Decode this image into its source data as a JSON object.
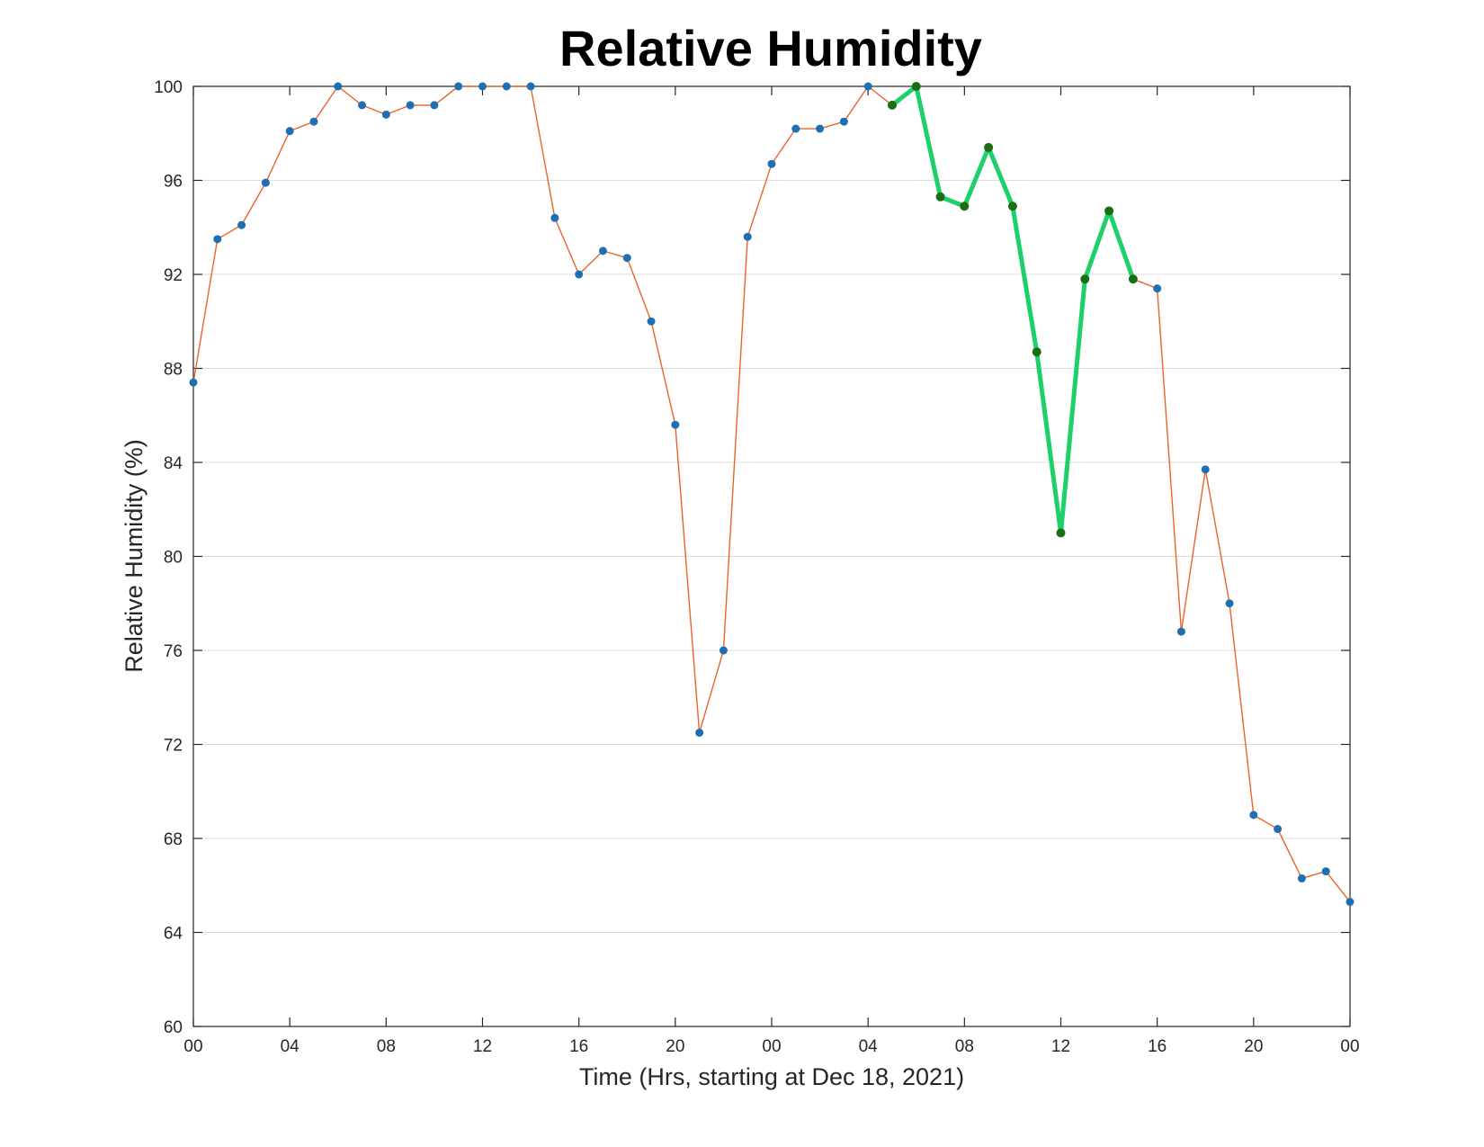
{
  "chart_data": {
    "type": "line",
    "title": "Relative Humidity",
    "xlabel": "Time (Hrs, starting at Dec 18, 2021)",
    "ylabel": "Relative Humidity (%)",
    "ylim": [
      60,
      100
    ],
    "xlim": [
      0,
      48
    ],
    "grid": "horizontal",
    "x_tick_values": [
      0,
      4,
      8,
      12,
      16,
      20,
      24,
      28,
      32,
      36,
      40,
      44,
      48
    ],
    "x_tick_labels": [
      "00",
      "04",
      "08",
      "12",
      "16",
      "20",
      "00",
      "04",
      "08",
      "12",
      "16",
      "20",
      "00"
    ],
    "y_tick_values": [
      60,
      64,
      68,
      72,
      76,
      80,
      84,
      88,
      92,
      96,
      100
    ],
    "y_tick_labels": [
      "60",
      "64",
      "68",
      "72",
      "76",
      "80",
      "84",
      "88",
      "92",
      "96",
      "100"
    ],
    "x": [
      0,
      1,
      2,
      3,
      4,
      5,
      6,
      7,
      8,
      9,
      10,
      11,
      12,
      13,
      14,
      15,
      16,
      17,
      18,
      19,
      20,
      21,
      22,
      23,
      24,
      25,
      26,
      27,
      28,
      29,
      30,
      31,
      32,
      33,
      34,
      35,
      36,
      37,
      38,
      39,
      40,
      41,
      42,
      43,
      44,
      45,
      46,
      47,
      48
    ],
    "series": [
      {
        "color": "#e8642a",
        "marker_color": "#1f6fb4",
        "values": [
          87.4,
          93.5,
          94.1,
          95.9,
          98.1,
          98.5,
          100,
          99.2,
          98.8,
          99.2,
          99.2,
          100,
          100,
          100,
          100,
          94.4,
          92.0,
          93.0,
          92.7,
          90.0,
          85.6,
          72.5,
          76.0,
          93.6,
          96.7,
          98.2,
          98.2,
          98.5,
          100,
          99.2,
          100,
          95.3,
          94.9,
          97.4,
          94.9,
          88.7,
          81.0,
          91.8,
          94.7,
          91.8,
          91.4,
          76.8,
          83.7,
          78.0,
          69.0,
          68.4,
          66.3,
          66.6,
          65.3
        ]
      },
      {
        "color": "#1ed06a",
        "marker_color": "#1a6e14",
        "x": [
          29,
          30,
          31,
          32,
          33,
          34,
          35,
          36,
          37,
          38,
          39
        ],
        "values": [
          99.2,
          100,
          95.3,
          94.9,
          97.4,
          94.9,
          88.7,
          81.0,
          91.8,
          94.7,
          91.8
        ]
      }
    ]
  }
}
